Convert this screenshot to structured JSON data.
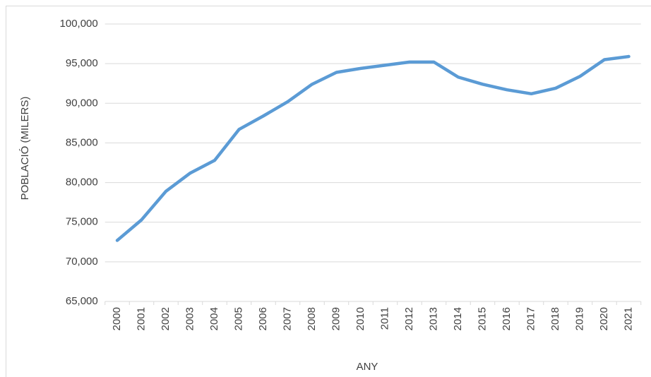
{
  "chart_data": {
    "type": "line",
    "x_label": "ANY",
    "y_label": "POBLACIÓ (MILERS)",
    "categories": [
      "2000",
      "2001",
      "2002",
      "2003",
      "2004",
      "2005",
      "2006",
      "2007",
      "2008",
      "2009",
      "2010",
      "2011",
      "2012",
      "2013",
      "2014",
      "2015",
      "2016",
      "2017",
      "2018",
      "2019",
      "2020",
      "2021"
    ],
    "values": [
      72700,
      75300,
      78900,
      81200,
      82800,
      86700,
      88400,
      90200,
      92400,
      93900,
      94400,
      94800,
      95200,
      95200,
      93300,
      92400,
      91700,
      91200,
      91900,
      93400,
      95500,
      95900
    ],
    "color": "#5b9bd5",
    "ylim": [
      65000,
      100000
    ],
    "yticks": [
      {
        "value": 65000,
        "label": "65,000"
      },
      {
        "value": 70000,
        "label": "70,000"
      },
      {
        "value": 75000,
        "label": "75,000"
      },
      {
        "value": 80000,
        "label": "80,000"
      },
      {
        "value": 85000,
        "label": "85,000"
      },
      {
        "value": 90000,
        "label": "90,000"
      },
      {
        "value": 95000,
        "label": "95,000"
      },
      {
        "value": 100000,
        "label": "100,000"
      }
    ],
    "grid": true
  }
}
